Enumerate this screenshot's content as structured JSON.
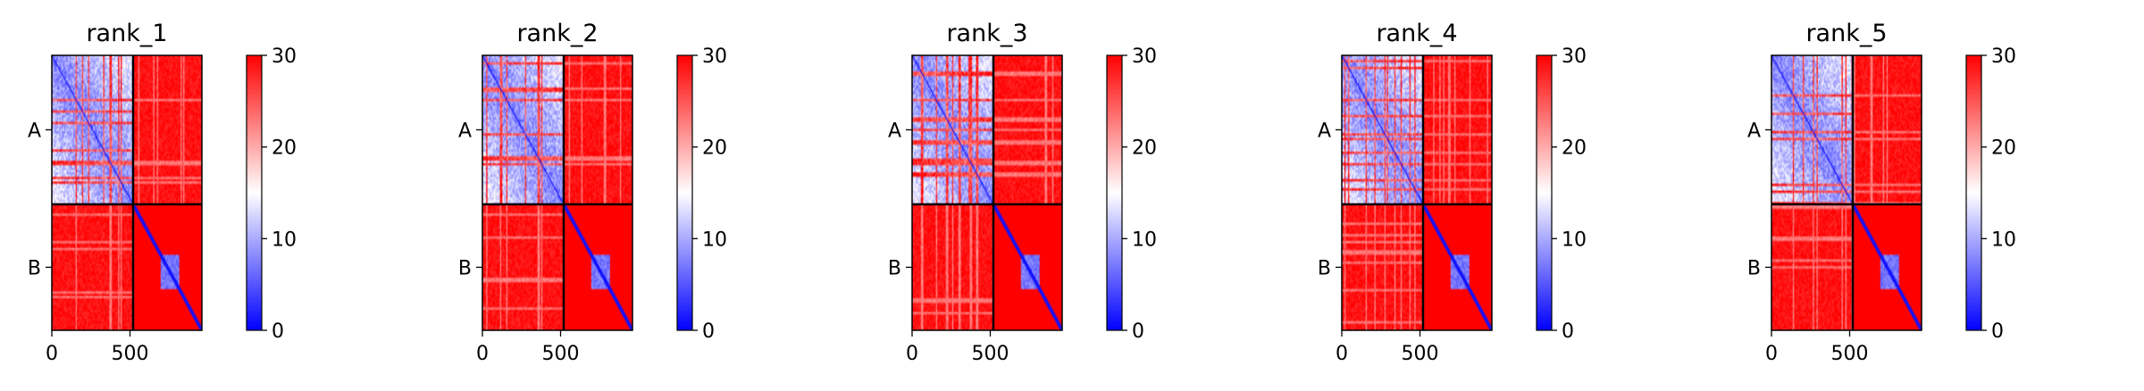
{
  "chart_data": {
    "type": "heatmap",
    "colormap": {
      "low": "#0000ff",
      "mid": "#ffffff",
      "high": "#ff0000"
    },
    "color_range": [
      0,
      30
    ],
    "colorbar_ticks": [
      "0",
      "10",
      "20",
      "30"
    ],
    "chain_labels": [
      "A",
      "B"
    ],
    "chain_boundary": 520,
    "total_length": 960,
    "x_ticks": [
      "0",
      "500"
    ],
    "x_tick_values": [
      0,
      500
    ],
    "grid": false,
    "panels": [
      {
        "title": "rank_1"
      },
      {
        "title": "rank_2"
      },
      {
        "title": "rank_3"
      },
      {
        "title": "rank_4"
      },
      {
        "title": "rank_5"
      }
    ],
    "structure": {
      "chain_A_intra_mean": 8,
      "inter_chain_mean": 29,
      "chain_B_diagonal": 1,
      "chain_B_domain_range": [
        690,
        810
      ],
      "chain_B_domain_mean": 5,
      "chain_B_background": 30
    }
  }
}
